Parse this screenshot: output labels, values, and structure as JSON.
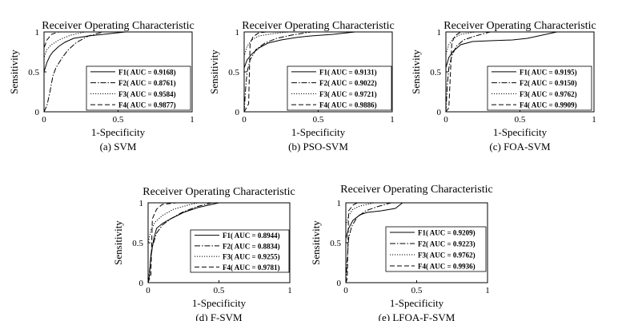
{
  "chart_data": [
    {
      "type": "line",
      "title": "Receiver Operating Characteristic",
      "caption": "(a) SVM",
      "xlabel": "1-Specificity",
      "ylabel": "Sensitivity",
      "xlim": [
        0,
        1
      ],
      "ylim": [
        0,
        1
      ],
      "xticks": [
        "0",
        "0.5",
        "1"
      ],
      "yticks": [
        "0",
        "0.5",
        "1"
      ],
      "legend_position": "bottom-right",
      "series": [
        {
          "name": "F1( AUC = 0.9168)",
          "style": "solid",
          "points": [
            [
              0,
              0
            ],
            [
              0,
              0.5
            ],
            [
              0.02,
              0.62
            ],
            [
              0.04,
              0.7
            ],
            [
              0.06,
              0.75
            ],
            [
              0.1,
              0.82
            ],
            [
              0.14,
              0.87
            ],
            [
              0.2,
              0.92
            ],
            [
              0.3,
              0.95
            ],
            [
              0.45,
              0.98
            ],
            [
              0.55,
              1
            ],
            [
              1,
              1
            ]
          ]
        },
        {
          "name": "F2( AUC = 0.8761)",
          "style": "dashdot",
          "points": [
            [
              0,
              0
            ],
            [
              0.02,
              0.08
            ],
            [
              0.04,
              0.25
            ],
            [
              0.06,
              0.45
            ],
            [
              0.08,
              0.55
            ],
            [
              0.12,
              0.67
            ],
            [
              0.16,
              0.77
            ],
            [
              0.22,
              0.87
            ],
            [
              0.3,
              0.95
            ],
            [
              0.4,
              1
            ],
            [
              1,
              1
            ]
          ]
        },
        {
          "name": "F3( AUC = 0.9584)",
          "style": "dotted",
          "points": [
            [
              0,
              0
            ],
            [
              0,
              0.68
            ],
            [
              0.02,
              0.78
            ],
            [
              0.05,
              0.84
            ],
            [
              0.1,
              0.9
            ],
            [
              0.18,
              0.96
            ],
            [
              0.28,
              1
            ],
            [
              1,
              1
            ]
          ]
        },
        {
          "name": "F4( AUC = 0.9877)",
          "style": "dashed",
          "points": [
            [
              0,
              0
            ],
            [
              0,
              0.8
            ],
            [
              0.02,
              0.9
            ],
            [
              0.05,
              0.97
            ],
            [
              0.1,
              1
            ],
            [
              1,
              1
            ]
          ]
        }
      ]
    },
    {
      "type": "line",
      "title": "Receiver Operating Characteristic",
      "caption": "(b) PSO-SVM",
      "xlabel": "1-Specificity",
      "ylabel": "Sensitivity",
      "xlim": [
        0,
        1
      ],
      "ylim": [
        0,
        1
      ],
      "xticks": [
        "0",
        "0.5",
        "1"
      ],
      "yticks": [
        "0",
        "0.5",
        "1"
      ],
      "legend_position": "bottom-right",
      "series": [
        {
          "name": "F1( AUC = 0.9131)",
          "style": "solid",
          "points": [
            [
              0,
              0
            ],
            [
              0,
              0.55
            ],
            [
              0.02,
              0.65
            ],
            [
              0.05,
              0.72
            ],
            [
              0.1,
              0.8
            ],
            [
              0.16,
              0.86
            ],
            [
              0.25,
              0.9
            ],
            [
              0.35,
              0.93
            ],
            [
              0.45,
              0.95
            ],
            [
              0.6,
              0.97
            ],
            [
              0.7,
              0.99
            ],
            [
              0.75,
              1
            ],
            [
              1,
              1
            ]
          ]
        },
        {
          "name": "F2( AUC = 0.9022)",
          "style": "dashdot",
          "points": [
            [
              0,
              0
            ],
            [
              0.01,
              0.3
            ],
            [
              0.02,
              0.5
            ],
            [
              0.04,
              0.65
            ],
            [
              0.08,
              0.78
            ],
            [
              0.14,
              0.86
            ],
            [
              0.22,
              0.92
            ],
            [
              0.32,
              0.96
            ],
            [
              0.45,
              1
            ],
            [
              1,
              1
            ]
          ]
        },
        {
          "name": "F3( AUC = 0.9721)",
          "style": "dotted",
          "points": [
            [
              0,
              0
            ],
            [
              0,
              0.7
            ],
            [
              0.02,
              0.82
            ],
            [
              0.05,
              0.9
            ],
            [
              0.1,
              0.95
            ],
            [
              0.2,
              0.98
            ],
            [
              0.3,
              1
            ],
            [
              1,
              1
            ]
          ]
        },
        {
          "name": "F4( AUC = 0.9886)",
          "style": "dashed",
          "points": [
            [
              0,
              0
            ],
            [
              0.03,
              0.1
            ],
            [
              0.04,
              0.85
            ],
            [
              0.06,
              0.94
            ],
            [
              0.1,
              0.99
            ],
            [
              0.15,
              1
            ],
            [
              1,
              1
            ]
          ]
        }
      ]
    },
    {
      "type": "line",
      "title": "Receiver Operating Characteristic",
      "caption": "(c) FOA-SVM",
      "xlabel": "1-Specificity",
      "ylabel": "Sensitivity",
      "xlim": [
        0,
        1
      ],
      "ylim": [
        0,
        1
      ],
      "xticks": [
        "0",
        "0.5",
        "1"
      ],
      "yticks": [
        "0",
        "0.5",
        "1"
      ],
      "legend_position": "bottom-right",
      "series": [
        {
          "name": "F1( AUC = 0.9195)",
          "style": "solid",
          "points": [
            [
              0,
              0
            ],
            [
              0,
              0.55
            ],
            [
              0.02,
              0.68
            ],
            [
              0.05,
              0.76
            ],
            [
              0.1,
              0.84
            ],
            [
              0.18,
              0.88
            ],
            [
              0.3,
              0.89
            ],
            [
              0.45,
              0.9
            ],
            [
              0.55,
              0.92
            ],
            [
              0.65,
              0.96
            ],
            [
              0.75,
              1
            ],
            [
              1,
              1
            ]
          ]
        },
        {
          "name": "F2( AUC = 0.9150)",
          "style": "dashdot",
          "points": [
            [
              0,
              0
            ],
            [
              0.01,
              0.35
            ],
            [
              0.02,
              0.55
            ],
            [
              0.04,
              0.7
            ],
            [
              0.07,
              0.82
            ],
            [
              0.12,
              0.9
            ],
            [
              0.2,
              0.95
            ],
            [
              0.3,
              1
            ],
            [
              1,
              1
            ]
          ]
        },
        {
          "name": "F3( AUC = 0.9762)",
          "style": "dotted",
          "points": [
            [
              0,
              0
            ],
            [
              0,
              0.72
            ],
            [
              0.02,
              0.84
            ],
            [
              0.05,
              0.92
            ],
            [
              0.1,
              0.97
            ],
            [
              0.2,
              1
            ],
            [
              1,
              1
            ]
          ]
        },
        {
          "name": "F4( AUC = 0.9909)",
          "style": "dashed",
          "points": [
            [
              0,
              0
            ],
            [
              0.02,
              0.05
            ],
            [
              0.04,
              0.86
            ],
            [
              0.06,
              0.95
            ],
            [
              0.1,
              1
            ],
            [
              1,
              1
            ]
          ]
        }
      ]
    },
    {
      "type": "line",
      "title": "Receiver Operating Characteristic",
      "caption": "(d) F-SVM",
      "xlabel": "1-Specificity",
      "ylabel": "Sensitivity",
      "xlim": [
        0,
        1
      ],
      "ylim": [
        0,
        1
      ],
      "xticks": [
        "0",
        "0.5",
        "1"
      ],
      "yticks": [
        "0",
        "0.5",
        "1"
      ],
      "legend_position": "bottom-right",
      "series": [
        {
          "name": "F1( AUC = 0.8944)",
          "style": "solid",
          "points": [
            [
              0,
              0
            ],
            [
              0.01,
              0.1
            ],
            [
              0.02,
              0.35
            ],
            [
              0.04,
              0.55
            ],
            [
              0.06,
              0.68
            ],
            [
              0.1,
              0.74
            ],
            [
              0.16,
              0.8
            ],
            [
              0.25,
              0.88
            ],
            [
              0.35,
              0.94
            ],
            [
              0.45,
              0.98
            ],
            [
              0.5,
              1
            ],
            [
              1,
              1
            ]
          ]
        },
        {
          "name": "F2( AUC = 0.8834)",
          "style": "dashdot",
          "points": [
            [
              0,
              0
            ],
            [
              0.01,
              0.15
            ],
            [
              0.03,
              0.45
            ],
            [
              0.06,
              0.62
            ],
            [
              0.1,
              0.72
            ],
            [
              0.16,
              0.8
            ],
            [
              0.24,
              0.88
            ],
            [
              0.34,
              0.95
            ],
            [
              0.45,
              1
            ],
            [
              1,
              1
            ]
          ]
        },
        {
          "name": "F3( AUC = 0.9255)",
          "style": "dotted",
          "points": [
            [
              0,
              0
            ],
            [
              0,
              0.5
            ],
            [
              0.02,
              0.66
            ],
            [
              0.05,
              0.76
            ],
            [
              0.1,
              0.84
            ],
            [
              0.18,
              0.92
            ],
            [
              0.28,
              0.97
            ],
            [
              0.35,
              1
            ],
            [
              1,
              1
            ]
          ]
        },
        {
          "name": "F4( AUC = 0.9781)",
          "style": "dashed",
          "points": [
            [
              0,
              0
            ],
            [
              0.02,
              0.1
            ],
            [
              0.03,
              0.8
            ],
            [
              0.06,
              0.92
            ],
            [
              0.1,
              0.98
            ],
            [
              0.2,
              1
            ],
            [
              1,
              1
            ]
          ]
        }
      ]
    },
    {
      "type": "line",
      "title": "Receiver Operating Characteristic",
      "caption": "(e) LFOA-F-SVM",
      "xlabel": "1-Specificity",
      "ylabel": "Sensitivity",
      "xlim": [
        0,
        1
      ],
      "ylim": [
        0,
        1
      ],
      "xticks": [
        "0",
        "0.5",
        "1"
      ],
      "yticks": [
        "0",
        "0.5",
        "1"
      ],
      "legend_position": "bottom-right",
      "series": [
        {
          "name": "F1( AUC = 0.9209)",
          "style": "solid",
          "points": [
            [
              0,
              0
            ],
            [
              0,
              0.55
            ],
            [
              0.02,
              0.68
            ],
            [
              0.05,
              0.78
            ],
            [
              0.1,
              0.85
            ],
            [
              0.15,
              0.88
            ],
            [
              0.25,
              0.9
            ],
            [
              0.35,
              0.93
            ],
            [
              0.4,
              1
            ],
            [
              1,
              1
            ]
          ]
        },
        {
          "name": "F2( AUC = 0.9223)",
          "style": "dashdot",
          "points": [
            [
              0,
              0
            ],
            [
              0.01,
              0.3
            ],
            [
              0.02,
              0.55
            ],
            [
              0.04,
              0.7
            ],
            [
              0.08,
              0.82
            ],
            [
              0.14,
              0.9
            ],
            [
              0.22,
              0.95
            ],
            [
              0.32,
              1
            ],
            [
              1,
              1
            ]
          ]
        },
        {
          "name": "F3( AUC = 0.9762)",
          "style": "dotted",
          "points": [
            [
              0,
              0
            ],
            [
              0,
              0.72
            ],
            [
              0.02,
              0.84
            ],
            [
              0.05,
              0.92
            ],
            [
              0.1,
              0.96
            ],
            [
              0.2,
              1
            ],
            [
              1,
              1
            ]
          ]
        },
        {
          "name": "F4( AUC = 0.9936)",
          "style": "dashed",
          "points": [
            [
              0,
              0
            ],
            [
              0.01,
              0.05
            ],
            [
              0.02,
              0.9
            ],
            [
              0.05,
              0.97
            ],
            [
              0.08,
              1
            ],
            [
              1,
              1
            ]
          ]
        }
      ]
    }
  ]
}
